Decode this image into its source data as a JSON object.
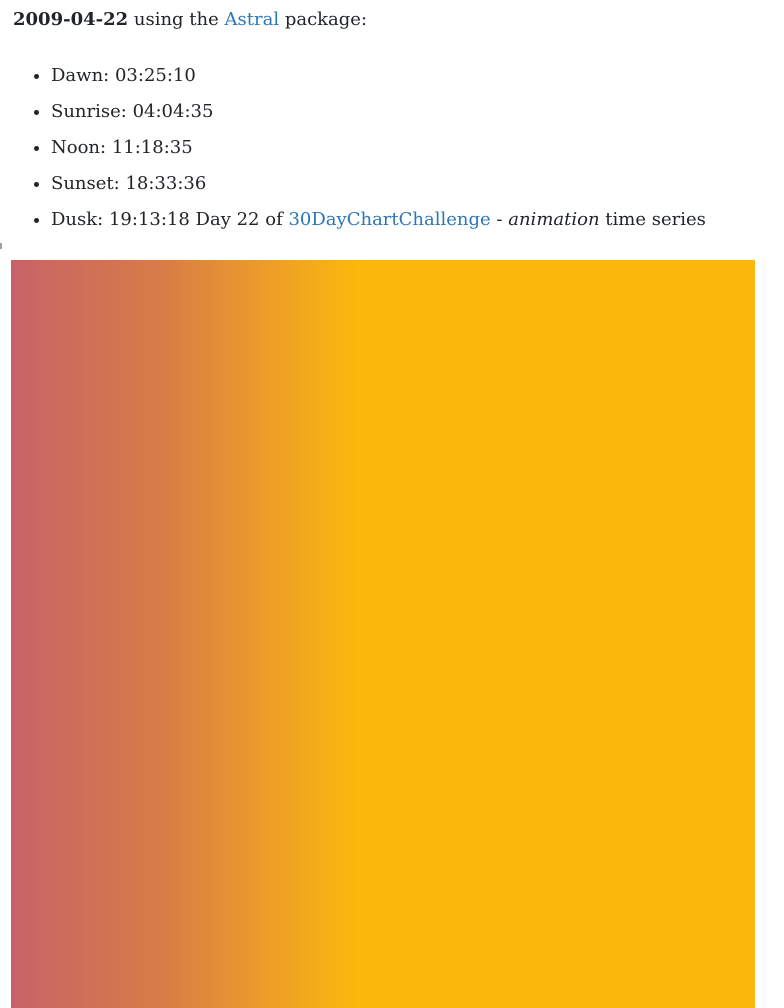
{
  "intro": {
    "date": "2009-04-22",
    "text_before_link": "using the",
    "link_label": "Astral",
    "text_after_link": "package:"
  },
  "times": [
    {
      "label": "Dawn:",
      "value": "03:25:10"
    },
    {
      "label": "Sunrise:",
      "value": "04:04:35"
    },
    {
      "label": "Noon:",
      "value": "11:18:35"
    },
    {
      "label": "Sunset:",
      "value": "18:33:36"
    },
    {
      "label": "Dusk:",
      "value": "19:13:18"
    }
  ],
  "dusk_suffix": {
    "day_text": "Day 22 of",
    "link_label": "30DayChartChallenge",
    "dash": "-",
    "emphasis": "animation",
    "tail": "time series"
  },
  "animation_frame": {
    "colors": {
      "start": "#c76368",
      "mid1": "#d77c47",
      "mid2": "#ea9a2c",
      "end": "#fdb90b"
    }
  }
}
